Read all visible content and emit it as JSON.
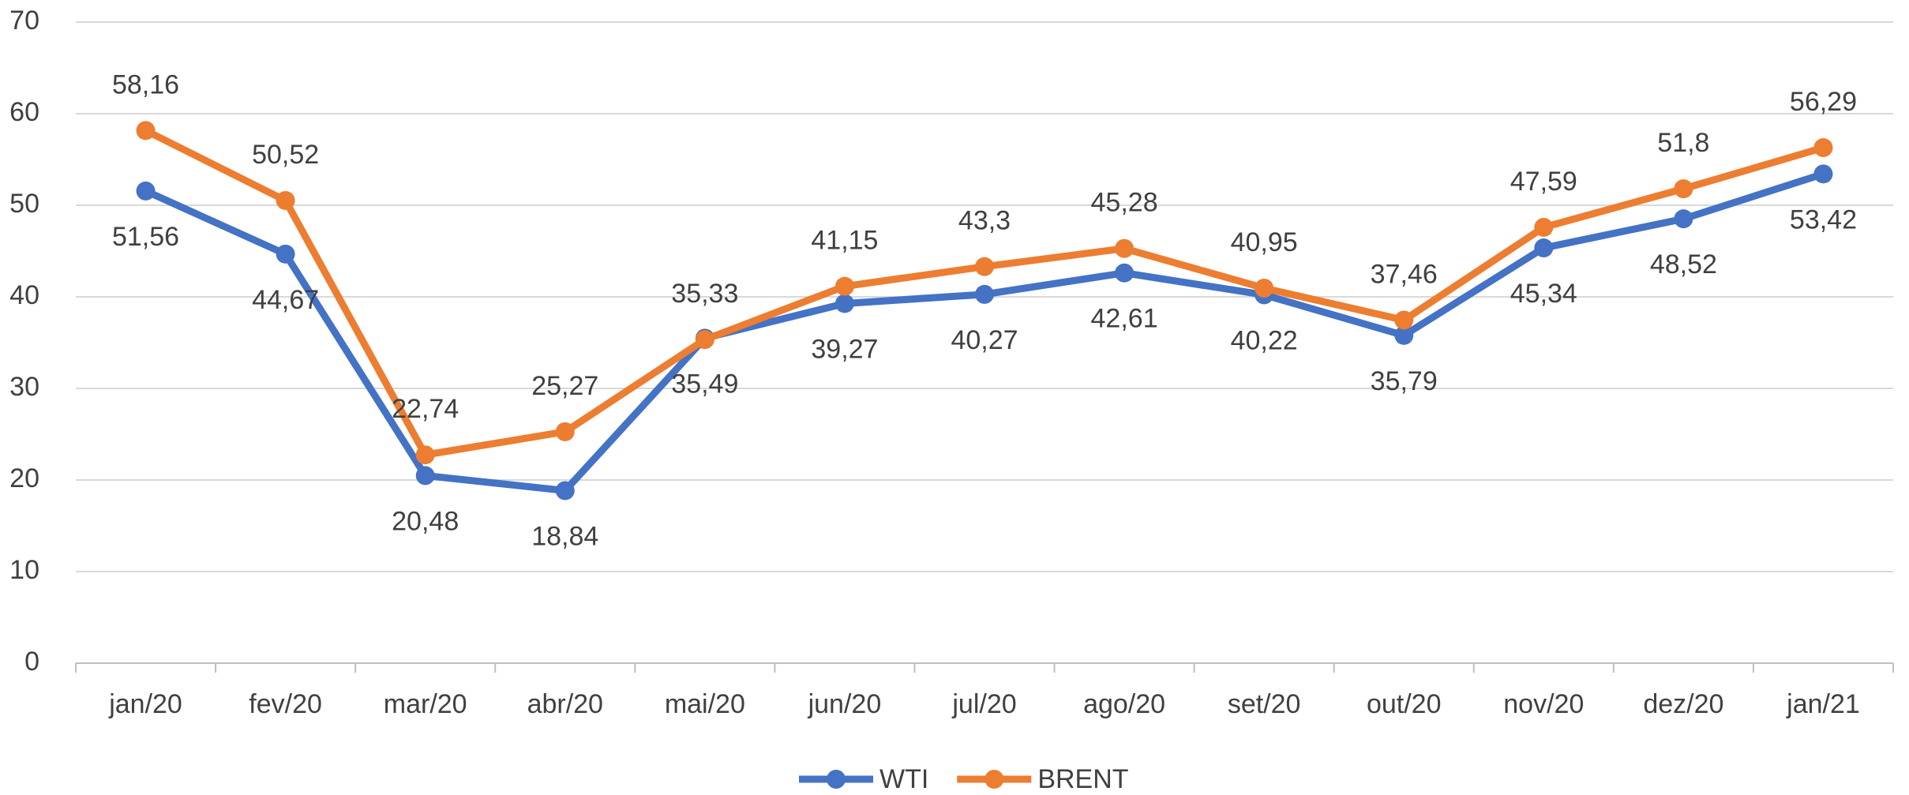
{
  "chart_data": {
    "type": "line",
    "categories": [
      "jan/20",
      "fev/20",
      "mar/20",
      "abr/20",
      "mai/20",
      "jun/20",
      "jul/20",
      "ago/20",
      "set/20",
      "out/20",
      "nov/20",
      "dez/20",
      "jan/21"
    ],
    "series": [
      {
        "name": "WTI",
        "color": "#4472c4",
        "values": [
          51.56,
          44.67,
          20.48,
          18.84,
          35.49,
          39.27,
          40.27,
          42.61,
          40.22,
          35.79,
          45.34,
          48.52,
          53.42
        ],
        "value_labels": [
          "51,56",
          "44,67",
          "20,48",
          "18,84",
          "35,49",
          "39,27",
          "40,27",
          "42,61",
          "40,22",
          "35,79",
          "45,34",
          "48,52",
          "53,42"
        ]
      },
      {
        "name": "BRENT",
        "color": "#ed7d31",
        "values": [
          58.16,
          50.52,
          22.74,
          25.27,
          35.33,
          41.15,
          43.3,
          45.28,
          40.95,
          37.46,
          47.59,
          51.8,
          56.29
        ],
        "value_labels": [
          "58,16",
          "50,52",
          "22,74",
          "25,27",
          "35,33",
          "41,15",
          "43,3",
          "45,28",
          "40,95",
          "37,46",
          "47,59",
          "51,8",
          "56,29"
        ]
      }
    ],
    "ylim": [
      0,
      70
    ],
    "yticks": [
      0,
      10,
      20,
      30,
      40,
      50,
      60,
      70
    ],
    "grid": true,
    "legend": "bottom"
  }
}
